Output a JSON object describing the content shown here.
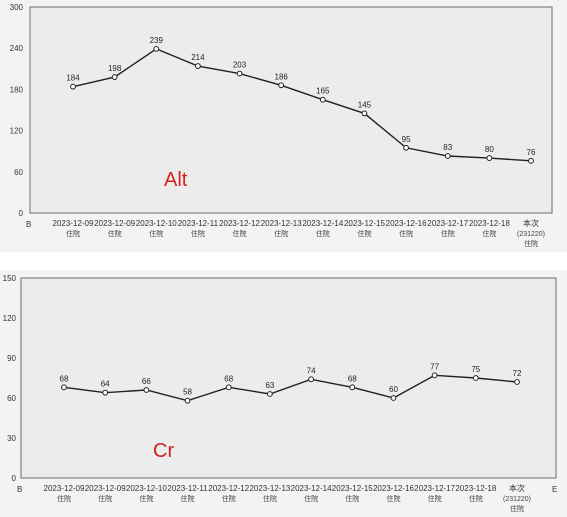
{
  "chart_data": [
    {
      "type": "line",
      "title": "",
      "annotation": "Alt",
      "ylim": [
        0,
        300
      ],
      "yticks": [
        0,
        60,
        120,
        180,
        240,
        300
      ],
      "corner_label": "B",
      "categories": [
        "2023-12-09",
        "2023-12-09",
        "2023-12-10",
        "2023-12-11",
        "2023-12-12",
        "2023-12-13",
        "2023-12-14",
        "2023-12-15",
        "2023-12-16",
        "2023-12-17",
        "2023-12-18",
        "本次"
      ],
      "category_sub": [
        "住院",
        "住院",
        "住院",
        "住院",
        "住院",
        "住院",
        "住院",
        "住院",
        "住院",
        "住院",
        "住院",
        "(231220)"
      ],
      "category_sub2": [
        "",
        "",
        "",
        "",
        "",
        "",
        "",
        "",
        "",
        "",
        "",
        "住院"
      ],
      "values": [
        184,
        198,
        239,
        214,
        203,
        186,
        165,
        145,
        95,
        83,
        80,
        76
      ],
      "grid": false
    },
    {
      "type": "line",
      "title": "",
      "annotation": "Cr",
      "ylim": [
        0,
        150
      ],
      "yticks": [
        0,
        30,
        60,
        90,
        120,
        150
      ],
      "corner_label": "B",
      "end_label": "E",
      "categories": [
        "2023-12-09",
        "2023-12-09",
        "2023-12-10",
        "2023-12-11",
        "2023-12-12",
        "2023-12-13",
        "2023-12-14",
        "2023-12-15",
        "2023-12-16",
        "2023-12-17",
        "2023-12-18",
        "本次"
      ],
      "category_sub": [
        "住院",
        "住院",
        "住院",
        "住院",
        "住院",
        "住院",
        "住院",
        "住院",
        "住院",
        "住院",
        "住院",
        "(231220)"
      ],
      "category_sub2": [
        "",
        "",
        "",
        "",
        "",
        "",
        "",
        "",
        "",
        "",
        "",
        "住院"
      ],
      "values": [
        68,
        64,
        66,
        58,
        68,
        63,
        74,
        68,
        60,
        77,
        75,
        72
      ],
      "grid": false
    }
  ]
}
